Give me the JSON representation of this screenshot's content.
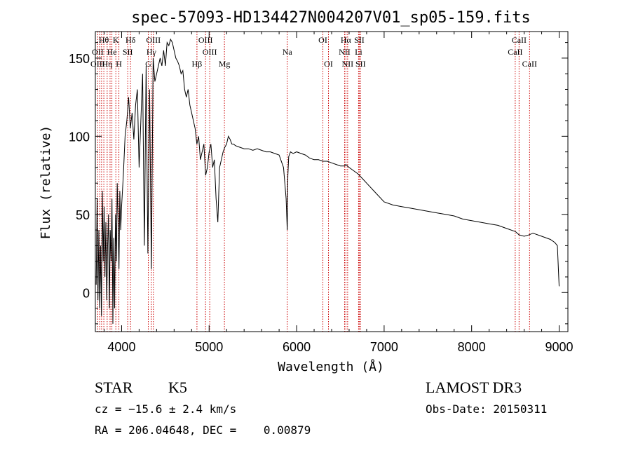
{
  "chart_data": {
    "type": "line",
    "title": "spec-57093-HD134427N004207V01_sp05-159.fits",
    "xlabel": "Wavelength (Å)",
    "ylabel": "Flux (relative)",
    "xlim": [
      3700,
      9100
    ],
    "ylim": [
      -25,
      167
    ],
    "x_ticks": [
      4000,
      5000,
      6000,
      7000,
      8000,
      9000
    ],
    "y_ticks": [
      0,
      50,
      100,
      150
    ],
    "grid": false,
    "series": [
      {
        "x": [
          3710,
          3720,
          3730,
          3740,
          3750,
          3760,
          3770,
          3780,
          3790,
          3800,
          3810,
          3820,
          3830,
          3840,
          3850,
          3860,
          3870,
          3880,
          3890,
          3900,
          3910,
          3920,
          3930,
          3940,
          3950,
          3960,
          3970,
          3980,
          3990,
          4000,
          4020,
          4040,
          4060,
          4080,
          4100,
          4120,
          4140,
          4160,
          4180,
          4200,
          4220,
          4240,
          4260,
          4280,
          4300,
          4320,
          4340,
          4360,
          4380,
          4400,
          4420,
          4440,
          4460,
          4480,
          4500,
          4520,
          4540,
          4560,
          4580,
          4600,
          4620,
          4640,
          4660,
          4680,
          4700,
          4720,
          4740,
          4760,
          4780,
          4800,
          4820,
          4840,
          4860,
          4880,
          4900,
          4920,
          4940,
          4960,
          4980,
          5000,
          5020,
          5040,
          5060,
          5080,
          5100,
          5120,
          5140,
          5160,
          5180,
          5200,
          5220,
          5240,
          5260,
          5280,
          5300,
          5350,
          5400,
          5450,
          5500,
          5550,
          5600,
          5650,
          5700,
          5750,
          5800,
          5850,
          5880,
          5893,
          5900,
          5910,
          5930,
          5960,
          6000,
          6050,
          6100,
          6150,
          6200,
          6250,
          6300,
          6350,
          6400,
          6450,
          6500,
          6550,
          6563,
          6580,
          6600,
          6650,
          6700,
          6750,
          6800,
          6900,
          7000,
          7100,
          7200,
          7300,
          7400,
          7500,
          7600,
          7700,
          7800,
          7900,
          8000,
          8100,
          8200,
          8300,
          8400,
          8500,
          8540,
          8600,
          8660,
          8700,
          8800,
          8900,
          8950,
          8980,
          9000
        ],
        "y": [
          5,
          60,
          -5,
          40,
          -10,
          30,
          -15,
          65,
          20,
          55,
          10,
          45,
          -5,
          30,
          50,
          -10,
          40,
          20,
          60,
          -20,
          35,
          -10,
          50,
          20,
          70,
          45,
          15,
          65,
          40,
          55,
          75,
          100,
          110,
          125,
          105,
          115,
          98,
          120,
          130,
          80,
          110,
          140,
          30,
          145,
          25,
          130,
          15,
          150,
          135,
          140,
          145,
          150,
          145,
          155,
          145,
          160,
          158,
          162,
          160,
          155,
          150,
          148,
          145,
          140,
          142,
          130,
          125,
          130,
          120,
          115,
          110,
          105,
          95,
          100,
          85,
          90,
          95,
          75,
          80,
          90,
          95,
          80,
          85,
          60,
          45,
          80,
          85,
          90,
          93,
          95,
          100,
          98,
          95,
          95,
          94,
          93,
          92,
          92,
          91,
          92,
          91,
          90,
          90,
          89,
          88,
          80,
          60,
          40,
          75,
          87,
          90,
          89,
          90,
          89,
          88,
          86,
          85,
          85,
          84,
          84,
          83,
          82,
          81,
          81,
          82,
          81,
          80,
          78,
          76,
          73,
          70,
          64,
          58,
          56,
          55,
          54,
          53,
          52,
          51,
          50,
          49,
          47,
          46,
          45,
          44,
          43,
          41,
          39,
          37,
          36,
          37,
          38,
          36,
          34,
          32,
          30,
          4
        ]
      }
    ],
    "annotations": [
      {
        "label": "Hθ",
        "x": 3797,
        "row": 1
      },
      {
        "label": "K",
        "x": 3934,
        "row": 1
      },
      {
        "label": "Hδ",
        "x": 4102,
        "row": 1
      },
      {
        "label": "OII",
        "x": 3727,
        "row": 2
      },
      {
        "label": "He",
        "x": 3889,
        "row": 2
      },
      {
        "label": "SII",
        "x": 4070,
        "row": 2
      },
      {
        "label": "OIII",
        "x": 3727,
        "row": 3
      },
      {
        "label": "Hη",
        "x": 3835,
        "row": 3
      },
      {
        "label": "H",
        "x": 3969,
        "row": 3
      },
      {
        "label": "OIII",
        "x": 4363,
        "row": 1
      },
      {
        "label": "Hγ",
        "x": 4340,
        "row": 2
      },
      {
        "label": "G",
        "x": 4305,
        "row": 3
      },
      {
        "label": "OIII",
        "x": 4959,
        "row": 1
      },
      {
        "label": "OIII",
        "x": 5007,
        "row": 2
      },
      {
        "label": "Hβ",
        "x": 4861,
        "row": 3
      },
      {
        "label": "Mg",
        "x": 5175,
        "row": 3
      },
      {
        "label": "Na",
        "x": 5893,
        "row": 2
      },
      {
        "label": "OI",
        "x": 6300,
        "row": 1
      },
      {
        "label": "OI",
        "x": 6364,
        "row": 3
      },
      {
        "label": "Hα",
        "x": 6563,
        "row": 1
      },
      {
        "label": "SII",
        "x": 6716,
        "row": 1
      },
      {
        "label": "NII",
        "x": 6548,
        "row": 2
      },
      {
        "label": "Li",
        "x": 6708,
        "row": 2
      },
      {
        "label": "NII",
        "x": 6583,
        "row": 3
      },
      {
        "label": "SII",
        "x": 6731,
        "row": 3
      },
      {
        "label": "CaII",
        "x": 8542,
        "row": 1
      },
      {
        "label": "CaII",
        "x": 8498,
        "row": 2
      },
      {
        "label": "CaII",
        "x": 8662,
        "row": 3
      }
    ],
    "line_markers_x": [
      3727,
      3750,
      3771,
      3797,
      3835,
      3868,
      3889,
      3934,
      3969,
      4070,
      4102,
      4305,
      4340,
      4363,
      4861,
      4959,
      5007,
      5175,
      5893,
      6300,
      6364,
      6548,
      6563,
      6583,
      6708,
      6716,
      6731,
      8498,
      8542,
      8662
    ],
    "marker_color": "#cc0000",
    "line_color": "#000000"
  },
  "info": {
    "obj_class": "STAR",
    "subclass": "K5",
    "survey": "LAMOST DR3",
    "cz": "cz = −15.6 ± 2.4 km/s",
    "obs_date": "Obs-Date: 20150311",
    "radec": "RA = 206.04648, DEC =    0.00879"
  }
}
